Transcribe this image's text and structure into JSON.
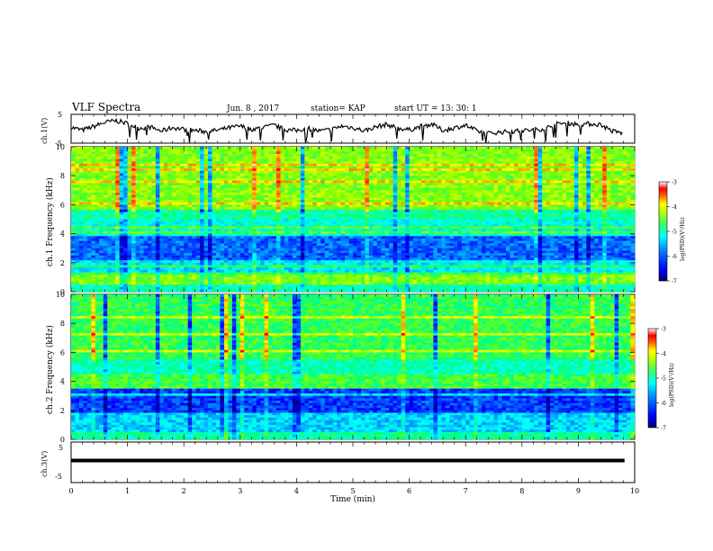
{
  "header": {
    "title": "VLF Spectra",
    "date": "Jun. 8 , 2017",
    "station": "station= KAP",
    "start": "start  UT  =   13: 30: 1"
  },
  "chart_data": [
    {
      "type": "line",
      "panel": "ch1-voltage",
      "ylabel": "ch.1(V)",
      "ylim": [
        -5,
        5
      ],
      "yticks": [
        "5",
        "-5"
      ],
      "xlim": [
        0,
        10
      ],
      "x": [
        0.0,
        0.2,
        0.4,
        0.6,
        0.8,
        1.0,
        1.2,
        1.4,
        1.6,
        1.8,
        2.0,
        2.2,
        2.4,
        2.6,
        2.8,
        3.0,
        3.2,
        3.4,
        3.6,
        3.8,
        4.0,
        4.2,
        4.4,
        4.6,
        4.8,
        5.0,
        5.2,
        5.4,
        5.6,
        5.8,
        6.0,
        6.2,
        6.4,
        6.6,
        6.8,
        7.0,
        7.2,
        7.4,
        7.6,
        7.8,
        8.0,
        8.2,
        8.4,
        8.6,
        8.8,
        9.0,
        9.2,
        9.4,
        9.6,
        9.8
      ],
      "y": [
        0.5,
        -0.5,
        0.8,
        2.2,
        2.8,
        1.8,
        0.2,
        0.6,
        -0.8,
        0.4,
        -0.2,
        -0.6,
        -1.0,
        -0.5,
        0.3,
        0.9,
        -0.2,
        0.4,
        1.2,
        -0.4,
        -0.6,
        0.2,
        -0.8,
        -0.4,
        0.9,
        0.4,
        -0.7,
        0.6,
        1.5,
        0.2,
        -0.4,
        0.8,
        1.6,
        -0.6,
        0.3,
        1.2,
        -0.8,
        -1.6,
        -1.2,
        -0.9,
        -0.7,
        -0.4,
        0.0,
        1.6,
        2.0,
        1.5,
        1.7,
        1.4,
        -0.8,
        -1.6
      ]
    },
    {
      "type": "heatmap",
      "panel": "ch1-spectrogram",
      "ylabel": "ch.1 Frequency (kHz)",
      "ylim": [
        0,
        10
      ],
      "yticks": [
        "0",
        "2",
        "4",
        "6",
        "8",
        "10"
      ],
      "xlim": [
        0,
        10
      ],
      "colorbar": {
        "label": "log(PSD)(V²/Hz)",
        "range": [
          -7,
          -3
        ],
        "ticks": [
          "-3",
          "-4",
          "-5",
          "-6",
          "-7"
        ]
      }
    },
    {
      "type": "heatmap",
      "panel": "ch2-spectrogram",
      "ylabel": "ch.2 Frequency (kHz)",
      "ylim": [
        0,
        10
      ],
      "yticks": [
        "0",
        "2",
        "4",
        "6",
        "8",
        "10"
      ],
      "xlim": [
        0,
        10
      ],
      "colorbar": {
        "label": "log(PSD)(V²/Hz)",
        "range": [
          -7,
          -3
        ],
        "ticks": [
          "-3",
          "-4",
          "-5",
          "-6",
          "-7"
        ]
      }
    },
    {
      "type": "line",
      "panel": "ch3-voltage",
      "ylabel": "ch.3(V)",
      "ylim": [
        -5,
        5
      ],
      "yticks": [
        "5",
        "0",
        "-5"
      ],
      "xlim": [
        0,
        10
      ],
      "x": [
        0,
        9.82
      ],
      "y": [
        0.0,
        0.0
      ]
    }
  ],
  "xaxis": {
    "label": "Time  (min)",
    "ticks": [
      "0",
      "1",
      "2",
      "3",
      "4",
      "5",
      "6",
      "7",
      "8",
      "9",
      "10"
    ]
  },
  "colors": {
    "trace": "#000000",
    "colormap": [
      "#00007f",
      "#0000ff",
      "#0080ff",
      "#00ffff",
      "#00ff80",
      "#80ff00",
      "#ffff00",
      "#ff8000",
      "#ff0000",
      "#ffffff"
    ]
  }
}
